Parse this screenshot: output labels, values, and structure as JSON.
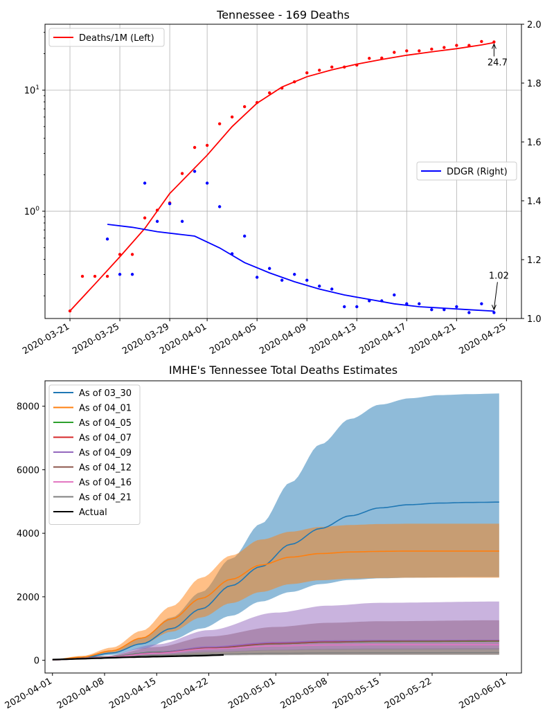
{
  "chart_data": [
    {
      "type": "line",
      "title": "Tennessee - 169 Deaths",
      "x_ticks": [
        "2020-03-21",
        "2020-03-25",
        "2020-03-29",
        "2020-04-01",
        "2020-04-05",
        "2020-04-09",
        "2020-04-13",
        "2020-04-17",
        "2020-04-21",
        "2020-04-25"
      ],
      "y_left": {
        "scale": "log",
        "range": [
          0.13,
          35
        ],
        "ticks": [
          {
            "value": 1,
            "label": "10^0"
          },
          {
            "value": 10,
            "label": "10^1"
          }
        ]
      },
      "y_right": {
        "scale": "linear",
        "range": [
          1.0,
          2.0
        ],
        "ticks": [
          "1.0",
          "1.2",
          "1.4",
          "1.6",
          "1.8",
          "2.0"
        ]
      },
      "grid": true,
      "legends": [
        {
          "label": "Deaths/1M (Left)",
          "color": "#ff0000",
          "placement": "top-left"
        },
        {
          "label": "DDGR (Right)",
          "color": "#0000ff",
          "placement": "center-right"
        }
      ],
      "series": [
        {
          "name": "Deaths/1M (Left)",
          "axis": "left",
          "kind": "points",
          "color": "#ff0000",
          "x": [
            "2020-03-21",
            "2020-03-22",
            "2020-03-23",
            "2020-03-24",
            "2020-03-25",
            "2020-03-26",
            "2020-03-27",
            "2020-03-28",
            "2020-03-29",
            "2020-03-30",
            "2020-03-31",
            "2020-04-01",
            "2020-04-02",
            "2020-04-03",
            "2020-04-04",
            "2020-04-05",
            "2020-04-06",
            "2020-04-07",
            "2020-04-08",
            "2020-04-09",
            "2020-04-10",
            "2020-04-11",
            "2020-04-12",
            "2020-04-13",
            "2020-04-14",
            "2020-04-15",
            "2020-04-16",
            "2020-04-17",
            "2020-04-18",
            "2020-04-19",
            "2020-04-20",
            "2020-04-21",
            "2020-04-22",
            "2020-04-23",
            "2020-04-24"
          ],
          "y": [
            0.15,
            0.29,
            0.29,
            0.29,
            0.44,
            0.44,
            0.88,
            1.02,
            1.17,
            2.05,
            3.36,
            3.5,
            5.27,
            6.0,
            7.3,
            7.9,
            9.5,
            10.4,
            11.7,
            13.9,
            14.6,
            15.5,
            15.5,
            16.1,
            18.3,
            18.4,
            20.5,
            21.1,
            21.1,
            21.8,
            22.5,
            23.4,
            23.4,
            25.2,
            25.0
          ]
        },
        {
          "name": "Deaths/1M (Left)",
          "axis": "left",
          "kind": "line",
          "color": "#ff0000",
          "x": [
            "2020-03-21",
            "2020-03-23",
            "2020-03-25",
            "2020-03-27",
            "2020-03-29",
            "2020-04-01",
            "2020-04-03",
            "2020-04-05",
            "2020-04-07",
            "2020-04-09",
            "2020-04-11",
            "2020-04-13",
            "2020-04-15",
            "2020-04-17",
            "2020-04-19",
            "2020-04-21",
            "2020-04-23",
            "2020-04-24"
          ],
          "y": [
            0.15,
            0.25,
            0.42,
            0.72,
            1.4,
            2.9,
            5.0,
            7.8,
            10.6,
            12.9,
            14.7,
            16.4,
            17.9,
            19.4,
            20.7,
            22.0,
            23.6,
            24.7
          ]
        },
        {
          "name": "DDGR (Right)",
          "axis": "right",
          "kind": "points",
          "color": "#0000ff",
          "x": [
            "2020-03-24",
            "2020-03-25",
            "2020-03-26",
            "2020-03-27",
            "2020-03-28",
            "2020-03-29",
            "2020-03-30",
            "2020-03-31",
            "2020-04-01",
            "2020-04-02",
            "2020-04-03",
            "2020-04-04",
            "2020-04-05",
            "2020-04-06",
            "2020-04-07",
            "2020-04-08",
            "2020-04-09",
            "2020-04-10",
            "2020-04-11",
            "2020-04-12",
            "2020-04-13",
            "2020-04-14",
            "2020-04-15",
            "2020-04-16",
            "2020-04-17",
            "2020-04-18",
            "2020-04-19",
            "2020-04-20",
            "2020-04-21",
            "2020-04-22",
            "2020-04-23",
            "2020-04-24"
          ],
          "y": [
            1.27,
            1.15,
            1.15,
            1.46,
            1.33,
            1.39,
            1.33,
            1.5,
            1.46,
            1.38,
            1.22,
            1.28,
            1.14,
            1.17,
            1.13,
            1.15,
            1.13,
            1.11,
            1.1,
            1.04,
            1.04,
            1.06,
            1.06,
            1.08,
            1.05,
            1.05,
            1.03,
            1.03,
            1.04,
            1.02,
            1.05,
            1.02
          ]
        },
        {
          "name": "DDGR (Right)",
          "axis": "right",
          "kind": "line",
          "color": "#0000ff",
          "x": [
            "2020-03-24",
            "2020-03-26",
            "2020-03-28",
            "2020-03-30",
            "2020-03-31",
            "2020-04-02",
            "2020-04-04",
            "2020-04-06",
            "2020-04-08",
            "2020-04-10",
            "2020-04-12",
            "2020-04-14",
            "2020-04-16",
            "2020-04-18",
            "2020-04-20",
            "2020-04-22",
            "2020-04-24"
          ],
          "y": [
            1.32,
            1.31,
            1.295,
            1.285,
            1.28,
            1.24,
            1.19,
            1.155,
            1.125,
            1.1,
            1.08,
            1.065,
            1.05,
            1.04,
            1.035,
            1.03,
            1.025
          ]
        }
      ],
      "annotations": [
        {
          "text": "24.7",
          "x": "2020-04-24",
          "y": 24.7,
          "axis": "left"
        },
        {
          "text": "1.02",
          "x": "2020-04-24",
          "y": 1.025,
          "axis": "right"
        }
      ]
    },
    {
      "type": "area",
      "title": "IMHE's Tennessee Total Deaths Estimates",
      "x_ticks": [
        "2020-04-01",
        "2020-04-08",
        "2020-04-15",
        "2020-04-22",
        "2020-05-01",
        "2020-05-08",
        "2020-05-15",
        "2020-05-22",
        "2020-06-01"
      ],
      "y_ticks": [
        0,
        2000,
        4000,
        6000,
        8000
      ],
      "x_range": [
        "2020-03-31",
        "2020-06-03"
      ],
      "y_range": [
        -400,
        8800
      ],
      "legend_placement": "top-left",
      "series": [
        {
          "name": "As of 03_30",
          "color": "#1f77b4",
          "band_color": "#1f77b4",
          "x": [
            "2020-04-01",
            "2020-04-05",
            "2020-04-09",
            "2020-04-13",
            "2020-04-17",
            "2020-04-21",
            "2020-04-25",
            "2020-04-29",
            "2020-05-03",
            "2020-05-07",
            "2020-05-11",
            "2020-05-15",
            "2020-05-19",
            "2020-05-23",
            "2020-05-27",
            "2020-05-31"
          ],
          "mean": [
            10,
            80,
            230,
            520,
            1000,
            1620,
            2350,
            2950,
            3650,
            4150,
            4550,
            4800,
            4900,
            4950,
            4970,
            4980
          ],
          "lower": [
            5,
            60,
            170,
            360,
            650,
            1000,
            1400,
            1850,
            2150,
            2400,
            2530,
            2580,
            2600,
            2610,
            2620,
            2620
          ],
          "upper": [
            20,
            110,
            300,
            700,
            1350,
            2150,
            3200,
            4300,
            5600,
            6800,
            7600,
            8050,
            8250,
            8350,
            8380,
            8400
          ]
        },
        {
          "name": "As of 04_01",
          "color": "#ff7f0e",
          "band_color": "#ff7f0e",
          "x": [
            "2020-04-01",
            "2020-04-05",
            "2020-04-09",
            "2020-04-13",
            "2020-04-17",
            "2020-04-21",
            "2020-04-25",
            "2020-04-29",
            "2020-05-03",
            "2020-05-07",
            "2020-05-11",
            "2020-05-15",
            "2020-05-19",
            "2020-05-23",
            "2020-05-27",
            "2020-05-31"
          ],
          "mean": [
            15,
            100,
            300,
            700,
            1300,
            1950,
            2550,
            3000,
            3250,
            3360,
            3410,
            3430,
            3440,
            3440,
            3440,
            3440
          ],
          "lower": [
            10,
            80,
            230,
            510,
            900,
            1350,
            1800,
            2150,
            2400,
            2520,
            2570,
            2590,
            2600,
            2600,
            2600,
            2600
          ],
          "upper": [
            25,
            140,
            400,
            930,
            1700,
            2600,
            3300,
            3800,
            4050,
            4200,
            4260,
            4290,
            4300,
            4300,
            4300,
            4300
          ]
        },
        {
          "name": "As of 04_05",
          "color": "#2ca02c",
          "x": [
            "2020-04-01",
            "2020-04-08",
            "2020-04-15",
            "2020-04-22",
            "2020-05-01",
            "2020-05-08",
            "2020-05-15",
            "2020-05-31"
          ],
          "mean": [
            15,
            100,
            260,
            400,
            520,
            570,
            590,
            600
          ]
        },
        {
          "name": "As of 04_07",
          "color": "#d62728",
          "band_color": "#8c564b",
          "x": [
            "2020-04-01",
            "2020-04-08",
            "2020-04-15",
            "2020-04-22",
            "2020-05-01",
            "2020-05-08",
            "2020-05-15",
            "2020-05-31"
          ],
          "mean": [
            15,
            95,
            240,
            390,
            540,
            590,
            610,
            620
          ],
          "lower": [
            10,
            70,
            140,
            170,
            180,
            180,
            180,
            180
          ],
          "upper": [
            20,
            130,
            420,
            750,
            1050,
            1180,
            1230,
            1260
          ]
        },
        {
          "name": "As of 04_09",
          "color": "#9467bd",
          "band_color": "#9467bd",
          "x": [
            "2020-04-01",
            "2020-04-08",
            "2020-04-15",
            "2020-04-22",
            "2020-05-01",
            "2020-05-08",
            "2020-05-15",
            "2020-05-31"
          ],
          "mean": [
            15,
            95,
            250,
            420,
            560,
            610,
            625,
            630
          ],
          "lower": [
            10,
            70,
            170,
            250,
            310,
            330,
            340,
            340
          ],
          "upper": [
            20,
            130,
            500,
            950,
            1500,
            1720,
            1810,
            1850
          ]
        },
        {
          "name": "As of 04_12",
          "color": "#8c564b",
          "x": [
            "2020-04-01",
            "2020-04-08",
            "2020-04-15",
            "2020-04-22",
            "2020-05-01",
            "2020-05-08",
            "2020-05-15",
            "2020-05-31"
          ],
          "mean": [
            15,
            95,
            230,
            380,
            520,
            570,
            600,
            610
          ]
        },
        {
          "name": "As of 04_16",
          "color": "#e377c2",
          "x": [
            "2020-04-01",
            "2020-04-08",
            "2020-04-15",
            "2020-04-22",
            "2020-05-01",
            "2020-05-08",
            "2020-05-15",
            "2020-05-31"
          ],
          "mean": [
            15,
            90,
            220,
            360,
            450,
            480,
            490,
            490
          ]
        },
        {
          "name": "As of 04_21",
          "color": "#7f7f7f",
          "band_color": "#7f7f7f",
          "x": [
            "2020-04-01",
            "2020-04-08",
            "2020-04-15",
            "2020-04-22",
            "2020-05-01",
            "2020-05-08",
            "2020-05-15",
            "2020-05-31"
          ],
          "mean": [
            15,
            80,
            150,
            190,
            220,
            230,
            235,
            240
          ],
          "lower": [
            10,
            70,
            120,
            150,
            165,
            170,
            170,
            170
          ],
          "upper": [
            20,
            95,
            190,
            270,
            330,
            360,
            370,
            380
          ]
        },
        {
          "name": "Actual",
          "color": "#000000",
          "x": [
            "2020-04-01",
            "2020-04-03",
            "2020-04-05",
            "2020-04-07",
            "2020-04-09",
            "2020-04-11",
            "2020-04-13",
            "2020-04-15",
            "2020-04-17",
            "2020-04-19",
            "2020-04-21",
            "2020-04-23",
            "2020-04-24"
          ],
          "mean": [
            24,
            35,
            50,
            65,
            80,
            95,
            105,
            115,
            125,
            135,
            145,
            160,
            169
          ]
        }
      ]
    }
  ]
}
